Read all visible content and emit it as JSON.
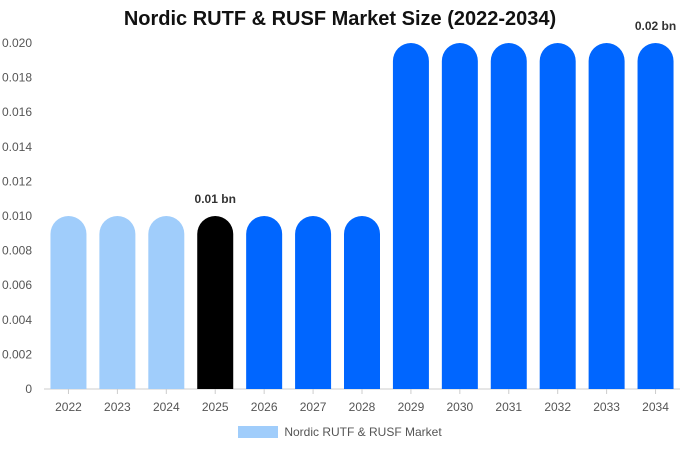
{
  "chart_data": {
    "type": "bar",
    "title": "Nordic RUTF & RUSF Market Size (2022-2034)",
    "categories": [
      "2022",
      "2023",
      "2024",
      "2025",
      "2026",
      "2027",
      "2028",
      "2029",
      "2030",
      "2031",
      "2032",
      "2033",
      "2034"
    ],
    "series": [
      {
        "name": "Nordic RUTF & RUSF Market",
        "values": [
          0.01,
          0.01,
          0.01,
          0.01,
          0.01,
          0.01,
          0.01,
          0.02,
          0.02,
          0.02,
          0.02,
          0.02,
          0.02
        ]
      }
    ],
    "bar_colors": [
      "#a0cdfb",
      "#a0cdfb",
      "#a0cdfb",
      "#000000",
      "#0066ff",
      "#0066ff",
      "#0066ff",
      "#0066ff",
      "#0066ff",
      "#0066ff",
      "#0066ff",
      "#0066ff",
      "#0066ff"
    ],
    "legend_color": "#a0cdfb",
    "ylim": [
      0,
      0.02
    ],
    "yticks": [
      "0",
      "0.002",
      "0.004",
      "0.006",
      "0.008",
      "0.010",
      "0.012",
      "0.014",
      "0.016",
      "0.018",
      "0.020"
    ],
    "annotations": [
      {
        "category": "2025",
        "text": "0.01 bn"
      },
      {
        "category": "2034",
        "text": "0.02 bn"
      }
    ],
    "legend_position": "bottom-center",
    "grid": false
  }
}
